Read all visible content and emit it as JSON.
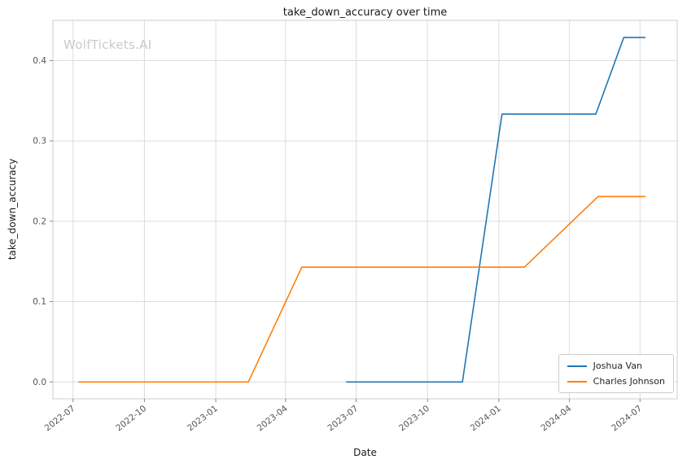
{
  "watermark": "WolfTickets.AI",
  "chart_data": {
    "type": "line",
    "title": "take_down_accuracy over time",
    "xlabel": "Date",
    "ylabel": "take_down_accuracy",
    "grid": true,
    "legend_position": "lower right",
    "x_ticks": [
      {
        "label": "2022-07",
        "date": "2022-07-01"
      },
      {
        "label": "2022-10",
        "date": "2022-10-01"
      },
      {
        "label": "2023-01",
        "date": "2023-01-01"
      },
      {
        "label": "2023-04",
        "date": "2023-04-01"
      },
      {
        "label": "2023-07",
        "date": "2023-07-01"
      },
      {
        "label": "2023-10",
        "date": "2023-10-01"
      },
      {
        "label": "2024-01",
        "date": "2024-01-01"
      },
      {
        "label": "2024-04",
        "date": "2024-04-01"
      },
      {
        "label": "2024-07",
        "date": "2024-07-01"
      }
    ],
    "y_ticks": [
      0.0,
      0.1,
      0.2,
      0.3,
      0.4
    ],
    "xlim": [
      "2022-06-05",
      "2024-08-18"
    ],
    "ylim": [
      -0.021,
      0.45
    ],
    "style": {
      "grid_color": "#dddddd",
      "spine_color": "#cccccc",
      "tick_color": "#888888",
      "background": "#ffffff"
    },
    "series": [
      {
        "name": "Joshua Van",
        "color": "#1f77b4",
        "x": [
          "2023-06-18",
          "2023-11-15",
          "2024-01-05",
          "2024-05-05",
          "2024-06-10",
          "2024-07-08"
        ],
        "y": [
          0.0,
          0.0,
          0.3333,
          0.3333,
          0.4286,
          0.4286
        ]
      },
      {
        "name": "Charles Johnson",
        "color": "#ff7f0e",
        "x": [
          "2022-07-08",
          "2023-02-12",
          "2023-04-22",
          "2024-02-03",
          "2024-05-08",
          "2024-07-08"
        ],
        "y": [
          0.0,
          0.0,
          0.1429,
          0.1429,
          0.2308,
          0.2308
        ]
      }
    ]
  }
}
